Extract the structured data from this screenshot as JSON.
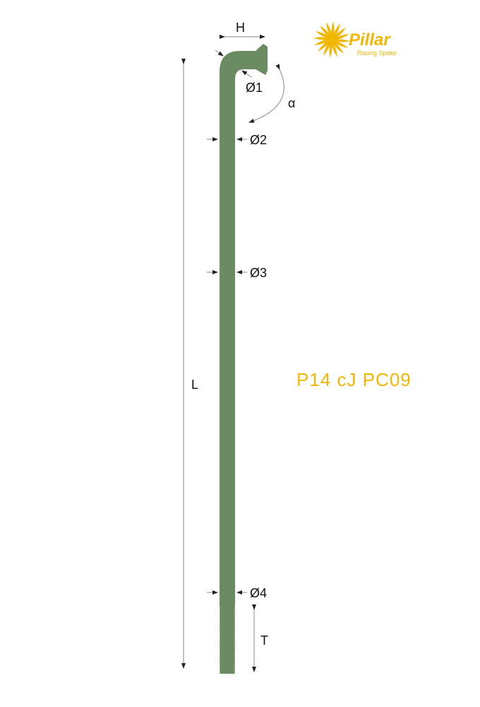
{
  "product_code": "P14 cJ PC09",
  "logo": {
    "brand": "Pillar",
    "tagline": "Racing Spoke"
  },
  "labels": {
    "H": "H",
    "L": "L",
    "T": "T",
    "alpha": "α",
    "d1": "Ø1",
    "d2": "Ø2",
    "d3": "Ø3",
    "d4": "Ø4"
  },
  "colors": {
    "spoke": "#6b8c63",
    "accent": "#f2b705",
    "dimension_lines": "#888888"
  }
}
